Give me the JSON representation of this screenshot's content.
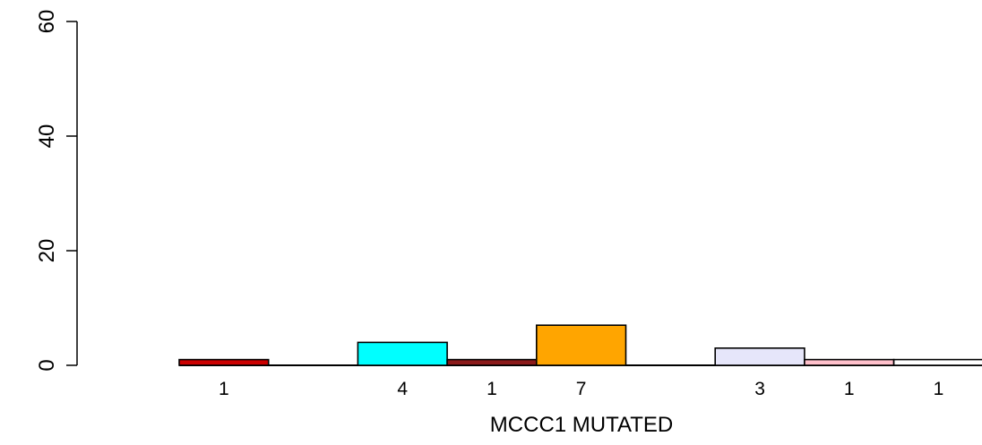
{
  "chart_data": {
    "type": "bar",
    "xlabel": "MCCC1 MUTATED",
    "ylabel": "",
    "ylim": [
      0,
      60
    ],
    "yticks": [
      0,
      20,
      40,
      60
    ],
    "grid": false,
    "bars": [
      {
        "slot": 0,
        "value": 1,
        "label": "1",
        "color": "#cc0000"
      },
      {
        "slot": 2,
        "value": 4,
        "label": "4",
        "color": "#00ffff"
      },
      {
        "slot": 3,
        "value": 1,
        "label": "1",
        "color": "#8b1a1a"
      },
      {
        "slot": 4,
        "value": 7,
        "label": "7",
        "color": "#ffa500"
      },
      {
        "slot": 6,
        "value": 3,
        "label": "3",
        "color": "#e6e6fa"
      },
      {
        "slot": 7,
        "value": 1,
        "label": "1",
        "color": "#ffc0cb"
      },
      {
        "slot": 8,
        "value": 1,
        "label": "1",
        "color": "#ffffff"
      }
    ]
  }
}
